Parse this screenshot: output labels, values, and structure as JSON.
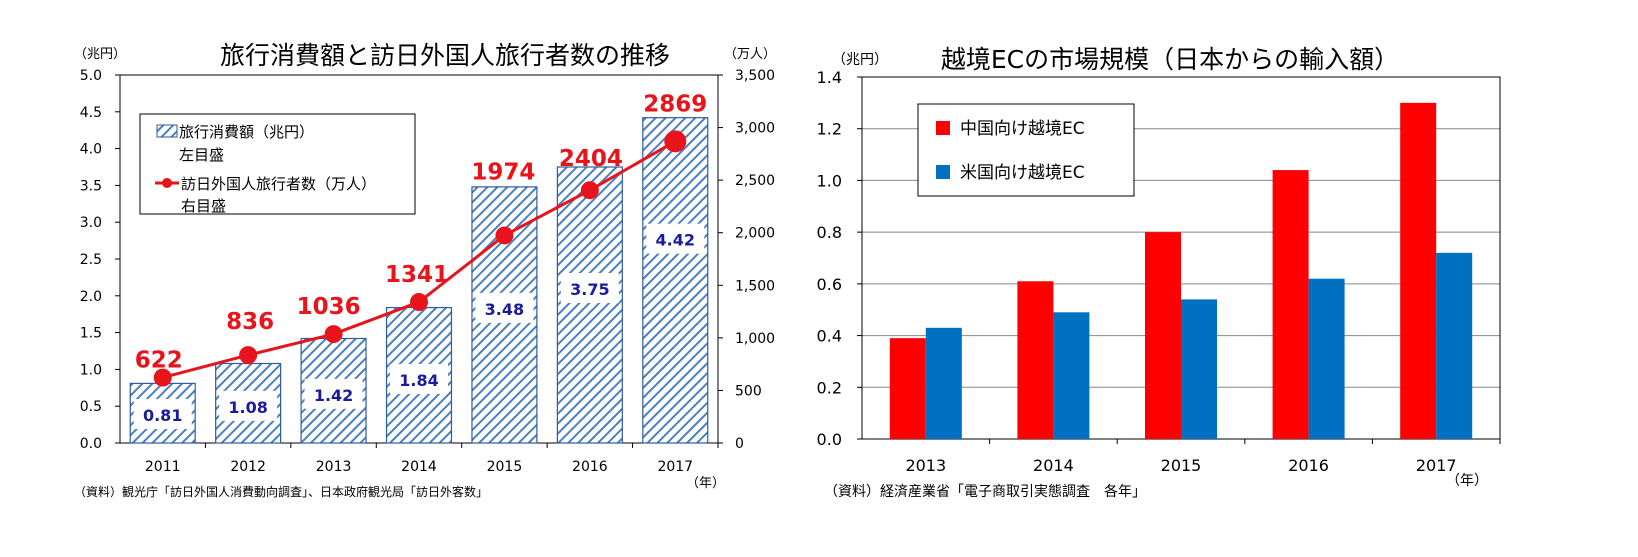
{
  "chart_data": [
    {
      "type": "bar",
      "title": "旅行消費額と訪日外国人旅行者数の推移",
      "ylabel_left": "（兆円）",
      "ylabel_right": "（万人）",
      "xunit": "（年）",
      "source": "（資料）観光庁「訪日外国人消費動向調査」、日本政府観光局「訪日外客数」",
      "categories": [
        "2011",
        "2012",
        "2013",
        "2014",
        "2015",
        "2016",
        "2017"
      ],
      "ylim_left": [
        0,
        5
      ],
      "yticks_left": [
        "0.0",
        "0.5",
        "1.0",
        "1.5",
        "2.0",
        "2.5",
        "3.0",
        "3.5",
        "4.0",
        "4.5",
        "5.0"
      ],
      "ylim_right": [
        0,
        3500
      ],
      "yticks_right": [
        "0",
        "500",
        "1,000",
        "1,500",
        "2,000",
        "2,500",
        "3,000",
        "3,500"
      ],
      "series": [
        {
          "name": "旅行消費額（兆円）",
          "axis_note": "左目盛",
          "kind": "bar",
          "values": [
            0.81,
            1.08,
            1.42,
            1.84,
            3.48,
            3.75,
            4.42
          ],
          "labels": [
            "0.81",
            "1.08",
            "1.42",
            "1.84",
            "3.48",
            "3.75",
            "4.42"
          ]
        },
        {
          "name": "訪日外国人旅行者数（万人）",
          "axis_note": "右目盛",
          "kind": "line",
          "values": [
            622,
            836,
            1036,
            1341,
            1974,
            2404,
            2869
          ],
          "labels": [
            "622",
            "836",
            "1036",
            "1341",
            "1974",
            "2404",
            "2869"
          ]
        }
      ],
      "colors": {
        "bar_stroke": "#2e5c9e",
        "bar_hatch": "#4a7fc4",
        "line": "#e8141c",
        "label_blue": "#1a1aa0"
      }
    },
    {
      "type": "bar",
      "title": "越境ECの市場規模（日本からの輸入額）",
      "ylabel": "（兆円）",
      "xunit": "（年）",
      "source": "（資料）経済産業省「電子商取引実態調査　各年」",
      "categories": [
        "2013",
        "2014",
        "2015",
        "2016",
        "2017"
      ],
      "ylim": [
        0,
        1.4
      ],
      "yticks": [
        "0.0",
        "0.2",
        "0.4",
        "0.6",
        "0.8",
        "1.0",
        "1.2",
        "1.4"
      ],
      "grid": true,
      "legend": "top-left",
      "series": [
        {
          "name": "中国向け越境EC",
          "values": [
            0.39,
            0.61,
            0.8,
            1.04,
            1.3
          ]
        },
        {
          "name": "米国向け越境EC",
          "values": [
            0.43,
            0.49,
            0.54,
            0.62,
            0.72
          ]
        }
      ],
      "colors": {
        "china": "#ff0000",
        "us": "#0070c0"
      }
    }
  ]
}
